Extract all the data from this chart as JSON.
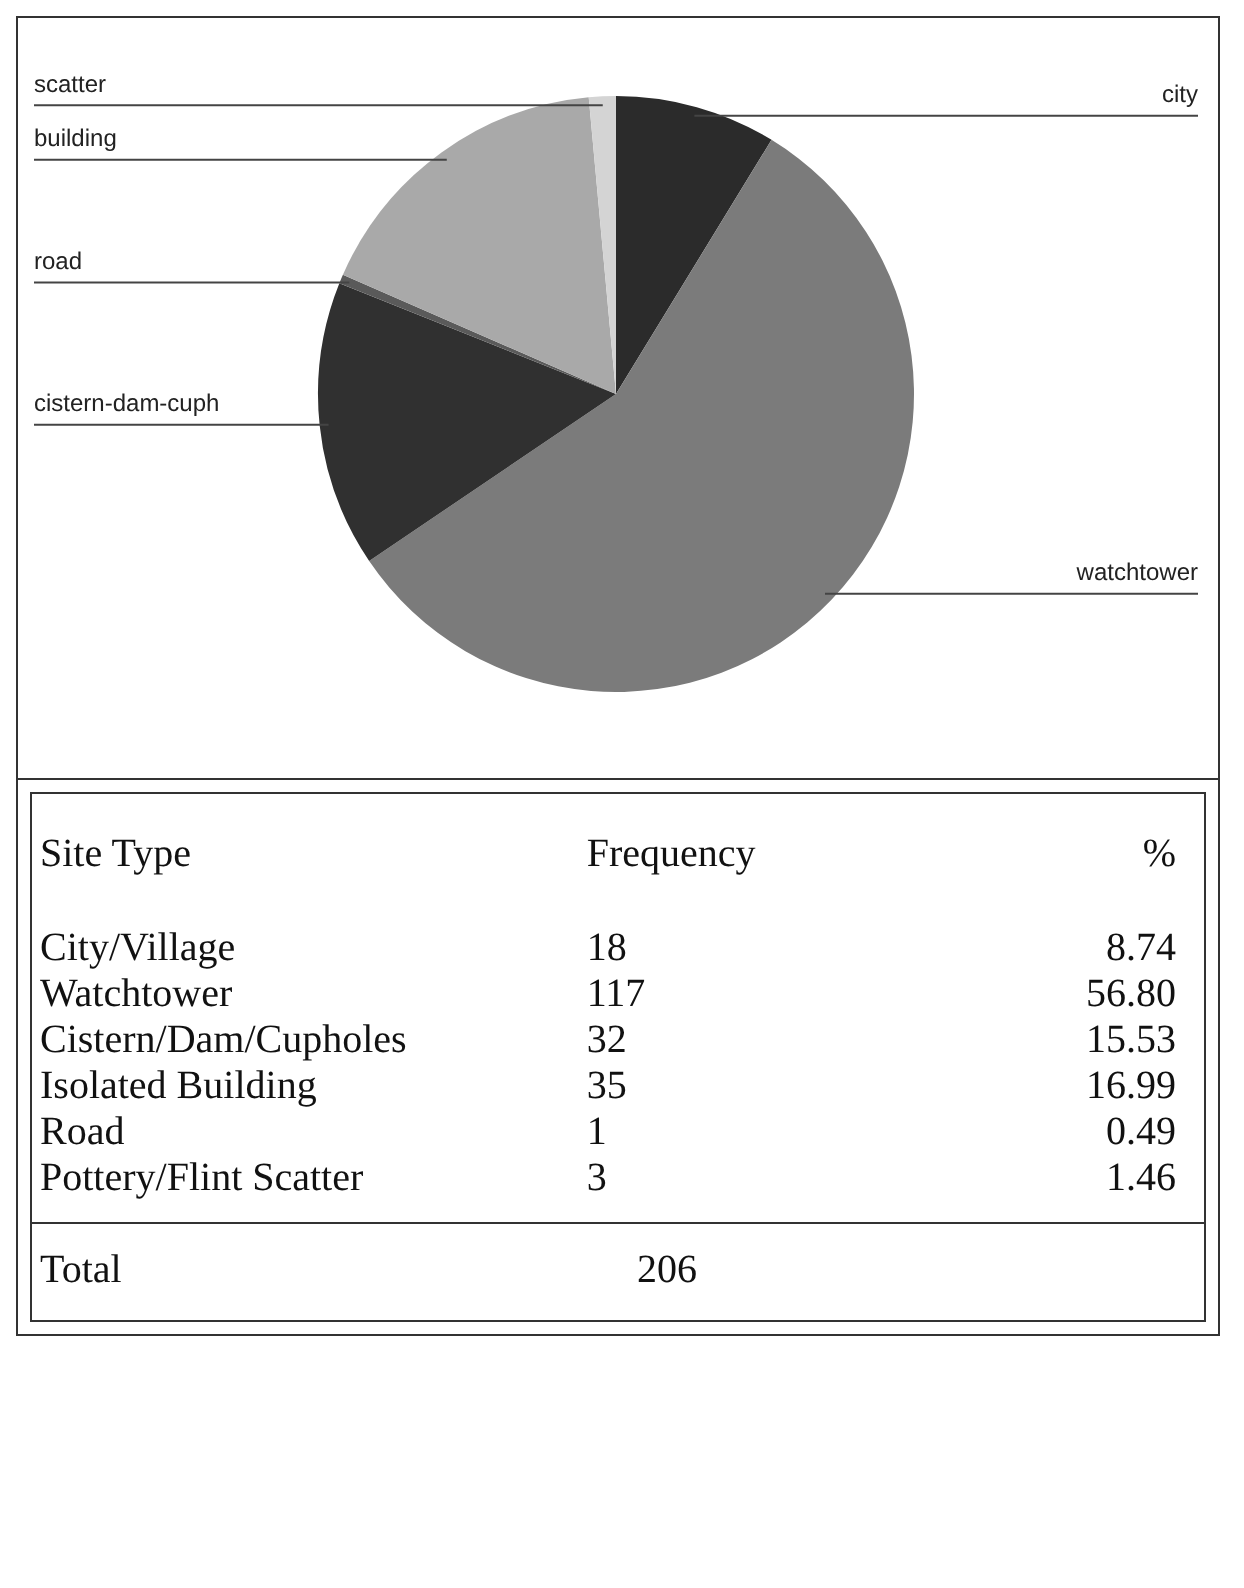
{
  "chart_data": [
    {
      "type": "pie",
      "categories": [
        "city",
        "watchtower",
        "cistern-dam-cuph",
        "road",
        "building",
        "scatter"
      ],
      "values": [
        8.74,
        56.8,
        15.53,
        0.49,
        16.99,
        1.46
      ],
      "colors": [
        "#2b2b2b",
        "#7b7b7b",
        "#303030",
        "#5a5a5a",
        "#a9a9a9",
        "#d4d4d4"
      ],
      "legend": false
    },
    {
      "type": "other",
      "annotations": [
        "Site Type",
        "Frequency",
        "%",
        "City/Village",
        "18",
        "8.74",
        "Watchtower",
        "117",
        "56.80",
        "Cistern/Dam/Cupholes",
        "32",
        "15.53",
        "Isolated Building",
        "35",
        "16.99",
        "Road",
        "1",
        "0.49",
        "Pottery/Flint Scatter",
        "3",
        "1.46",
        "Total",
        "206"
      ]
    }
  ]
}
